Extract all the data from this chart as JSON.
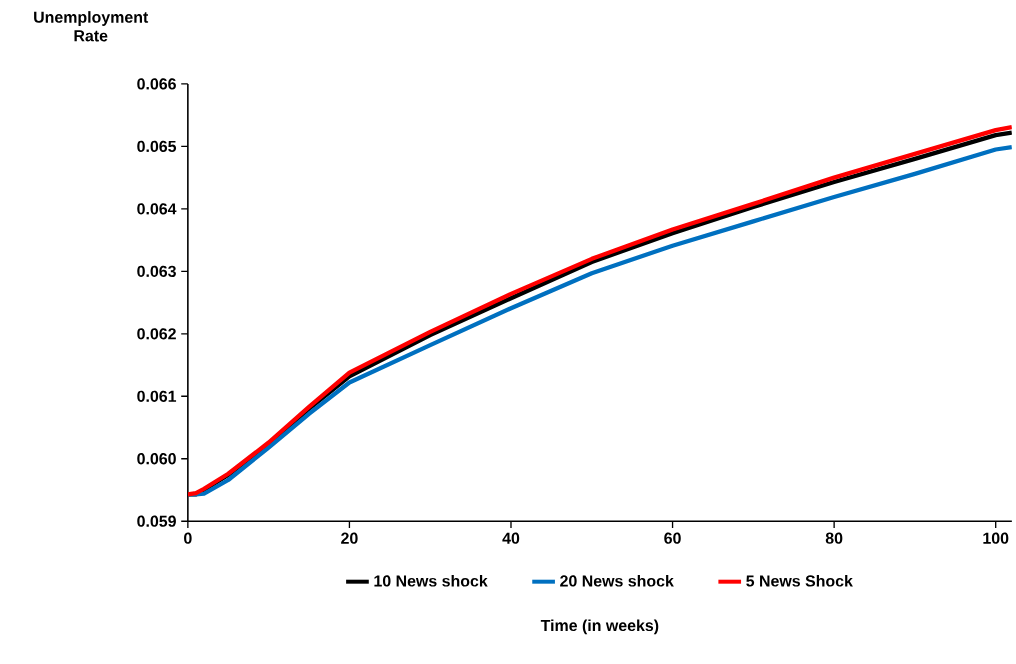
{
  "chart_data": {
    "type": "line",
    "ylabel": "Unemployment Rate",
    "xlabel": "Time (in weeks)",
    "x": [
      0,
      1,
      2,
      5,
      10,
      15,
      20,
      30,
      40,
      50,
      60,
      70,
      80,
      90,
      100,
      102
    ],
    "series": [
      {
        "name": "10 News shock",
        "color": "#000000",
        "values": [
          0.05943,
          0.05943,
          0.0595,
          0.05974,
          0.06024,
          0.0608,
          0.06132,
          0.06198,
          0.06257,
          0.06315,
          0.06361,
          0.06403,
          0.06443,
          0.0648,
          0.06518,
          0.06522
        ]
      },
      {
        "name": "20 News shock",
        "color": "#0070c0",
        "values": [
          0.05943,
          0.05943,
          0.05944,
          0.05966,
          0.06018,
          0.06072,
          0.06122,
          0.06182,
          0.06241,
          0.06297,
          0.06341,
          0.0638,
          0.06419,
          0.06456,
          0.06495,
          0.06499
        ]
      },
      {
        "name": "5 News Shock",
        "color": "#ff0000",
        "values": [
          0.05943,
          0.05945,
          0.05952,
          0.05976,
          0.06026,
          0.06083,
          0.06138,
          0.06203,
          0.06264,
          0.0632,
          0.06367,
          0.06408,
          0.0645,
          0.06488,
          0.06526,
          0.06531
        ]
      }
    ],
    "xlim": [
      0,
      102
    ],
    "ylim": [
      0.059,
      0.066
    ],
    "xticks": [
      0,
      20,
      40,
      60,
      80,
      100
    ],
    "yticks": [
      {
        "value": 0.059,
        "label": "0.059"
      },
      {
        "value": 0.06,
        "label": "0.060"
      },
      {
        "value": 0.061,
        "label": "0.061"
      },
      {
        "value": 0.062,
        "label": "0.062"
      },
      {
        "value": 0.063,
        "label": "0.063"
      },
      {
        "value": 0.064,
        "label": "0.064"
      },
      {
        "value": 0.065,
        "label": "0.065"
      },
      {
        "value": 0.066,
        "label": "0.066"
      }
    ],
    "grid": false,
    "legend": "bottom",
    "marker": "none",
    "line_style": "solid"
  }
}
